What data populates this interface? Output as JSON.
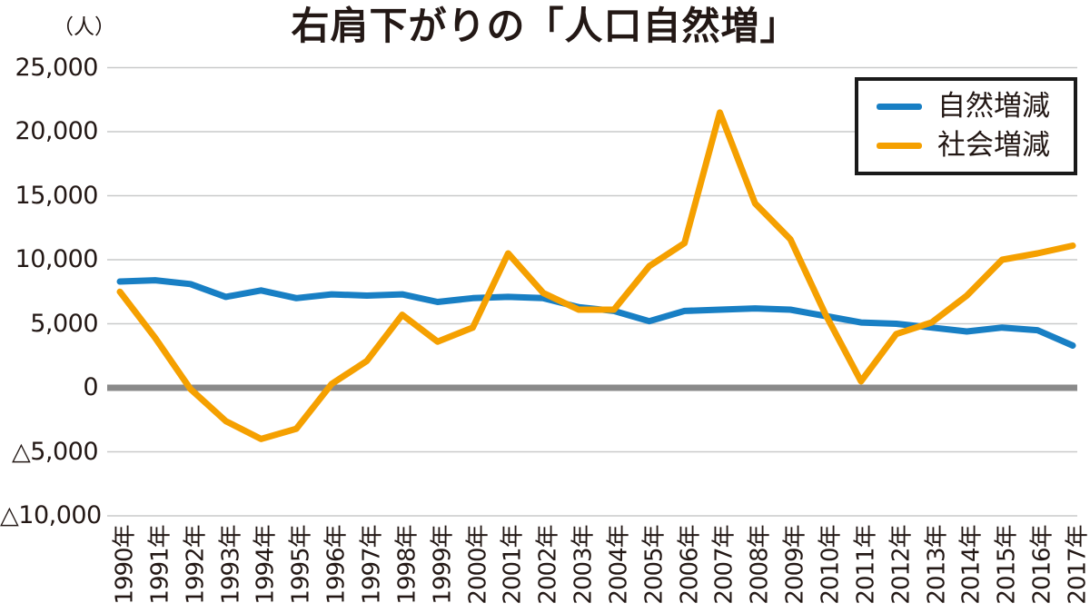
{
  "chart_data": {
    "type": "line",
    "title": "右肩下がりの「人口自然増」",
    "unit": "（人）",
    "xlabel": "",
    "ylabel": "（人）",
    "ylim": [
      -10000,
      25000
    ],
    "grid": true,
    "legend_position": "top-right",
    "negative_notation": "△",
    "grid_color": "#c9caca",
    "zero_line_color": "#8a8a8a",
    "categories": [
      "1990年",
      "1991年",
      "1992年",
      "1993年",
      "1994年",
      "1995年",
      "1996年",
      "1997年",
      "1998年",
      "1999年",
      "2000年",
      "2001年",
      "2002年",
      "2003年",
      "2004年",
      "2005年",
      "2006年",
      "2007年",
      "2008年",
      "2009年",
      "2010年",
      "2011年",
      "2012年",
      "2013年",
      "2014年",
      "2015年",
      "2016年",
      "2017年"
    ],
    "series": [
      {
        "id": "natural",
        "name": "自然増減",
        "color": "#187fc4",
        "values": [
          8300,
          8400,
          8100,
          7100,
          7600,
          7000,
          7300,
          7200,
          7300,
          6700,
          7000,
          7100,
          7000,
          6300,
          6000,
          5200,
          6000,
          6100,
          6200,
          6100,
          5600,
          5100,
          5000,
          4700,
          4400,
          4700,
          4500,
          3300
        ]
      },
      {
        "id": "social",
        "name": "社会増減",
        "color": "#f5a000",
        "values": [
          7500,
          3900,
          -100,
          -2600,
          -4000,
          -3200,
          300,
          2100,
          5700,
          3600,
          4700,
          10500,
          7400,
          6100,
          6100,
          9500,
          11300,
          21500,
          14400,
          11600,
          5700,
          500,
          4200,
          5100,
          7200,
          10000,
          10500,
          11100
        ]
      }
    ],
    "yticks": [
      {
        "label": "25,000",
        "value": 25000
      },
      {
        "label": "20,000",
        "value": 20000
      },
      {
        "label": "15,000",
        "value": 15000
      },
      {
        "label": "10,000",
        "value": 10000
      },
      {
        "label": "5,000",
        "value": 5000
      },
      {
        "label": "0",
        "value": 0
      },
      {
        "label": "△5,000",
        "value": -5000
      },
      {
        "label": "△10,000",
        "value": -10000
      }
    ]
  }
}
